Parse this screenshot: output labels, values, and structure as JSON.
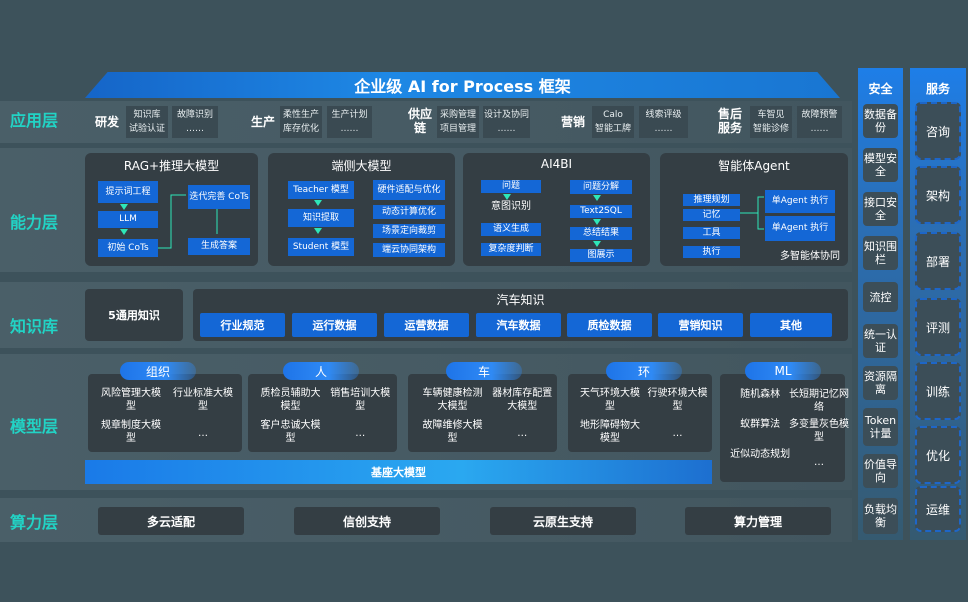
{
  "title": "企业级 AI for Process 框架",
  "layers": {
    "app": "应用层",
    "ability": "能力层",
    "knowledge": "知识库",
    "model": "模型层",
    "compute": "算力层"
  },
  "app_layer": [
    {
      "name": "研发",
      "items": [
        "知识库",
        "故障识别",
        "试验认证",
        "……"
      ]
    },
    {
      "name": "生产",
      "items": [
        "柔性生产",
        "生产计划",
        "库存优化",
        "……"
      ]
    },
    {
      "name": "供应链",
      "items": [
        "采购管理",
        "设计及协同",
        "项目管理",
        "……"
      ]
    },
    {
      "name": "营销",
      "items": [
        "Calo",
        "线索评级",
        "智能工牌",
        "……"
      ]
    },
    {
      "name": "售后服务",
      "items": [
        "车智见",
        "故障预警",
        "智能诊修",
        "……"
      ]
    }
  ],
  "ability_layer": [
    {
      "title": "RAG+推理大模型",
      "boxes": [
        "提示词工程",
        "LLM",
        "初始 CoTs",
        "迭代完善 CoTs",
        "生成答案"
      ]
    },
    {
      "title": "端侧大模型",
      "boxes": [
        "Teacher 模型",
        "知识提取",
        "Student 模型",
        "硬件适配与优化",
        "动态计算优化",
        "场景定向裁剪",
        "端云协同架构"
      ]
    },
    {
      "title": "AI4BI",
      "boxes": [
        "问题",
        "意图识别",
        "语义生成",
        "复杂度判断",
        "问题分解",
        "Text2SQL",
        "总结结果",
        "图展示"
      ]
    },
    {
      "title": "智能体Agent",
      "boxes": [
        "推理规划",
        "记忆",
        "工具",
        "执行",
        "单Agent 执行",
        "单Agent 执行"
      ],
      "footer": "多智能体协同"
    }
  ],
  "knowledge_layer": {
    "general": "5通用知识",
    "auto_title": "汽车知识",
    "chips": [
      "行业规范",
      "运行数据",
      "运营数据",
      "汽车数据",
      "质检数据",
      "营销知识",
      "其他"
    ]
  },
  "model_layer": {
    "groups": [
      {
        "name": "组织",
        "items": [
          "风险管理大模型",
          "行业标准大模型",
          "规章制度大模型",
          "…"
        ]
      },
      {
        "name": "人",
        "items": [
          "质检员辅助大模型",
          "销售培训大模型",
          "客户忠诚大模型",
          "…"
        ]
      },
      {
        "name": "车",
        "items": [
          "车辆健康检测大模型",
          "器材库存配置大模型",
          "故障维修大模型",
          "…"
        ]
      },
      {
        "name": "环",
        "items": [
          "天气环境大模型",
          "行驶环境大模型",
          "地形障碍物大模型",
          "…"
        ]
      },
      {
        "name": "ML",
        "items": [
          "随机森林",
          "长短期记忆网络",
          "蚁群算法",
          "多变量灰色模型",
          "近似动态规划",
          "…"
        ]
      }
    ],
    "base": "基座大模型"
  },
  "compute_layer": [
    "多云适配",
    "信创支持",
    "云原生支持",
    "算力管理"
  ],
  "security": {
    "title": "安全",
    "items": [
      "数据备份",
      "模型安全",
      "接口安全",
      "知识围栏",
      "流控",
      "统一认证",
      "资源隔离",
      "Token计量",
      "价值导向",
      "负载均衡"
    ]
  },
  "service": {
    "title": "服务",
    "items": [
      "咨询",
      "架构",
      "部署",
      "评测",
      "训练",
      "优化",
      "运维"
    ]
  },
  "colors": {
    "background": "#3d525b",
    "accent_blue": "#1467d6",
    "layer_label": "#22d3c5",
    "arrow": "#2ee6b8"
  }
}
